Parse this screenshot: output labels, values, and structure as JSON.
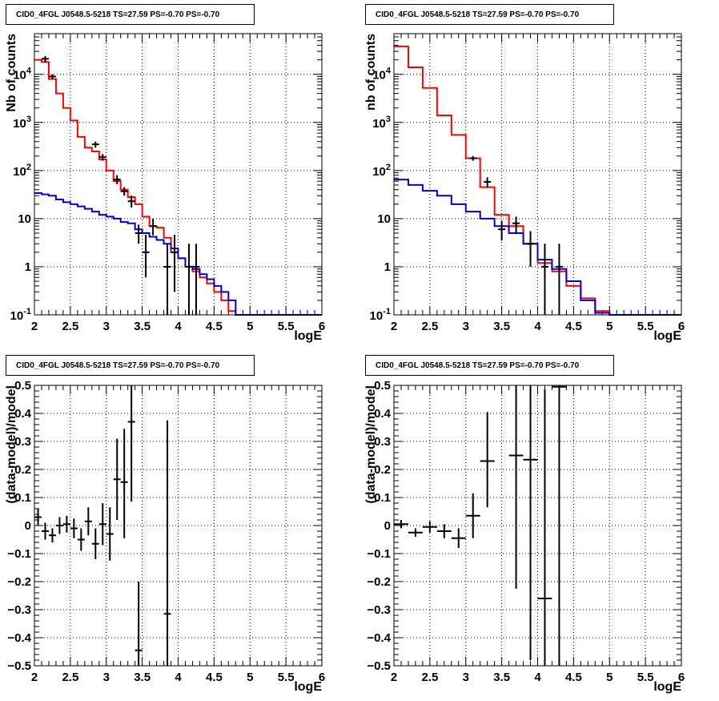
{
  "colors": {
    "data": "#000000",
    "model_total": "#ff0000",
    "model_bkg": "#0000cc",
    "grid": "#000000"
  },
  "chart_data": [
    {
      "type": "line",
      "title": "CID0_4FGL J0548.5-5218 TS=27.59 PS=-0.70 PS=-0.70",
      "xlabel": "logE",
      "ylabel": "Nb of counts",
      "xlim": [
        2,
        6
      ],
      "ylim": [
        0.1,
        70000
      ],
      "yscale": "log",
      "grid": true,
      "x_ticks": [
        "2",
        "2.5",
        "3",
        "3.5",
        "4",
        "4.5",
        "5",
        "5.5",
        "6"
      ],
      "y_ticks": [
        {
          "v": 0.1,
          "base": "10",
          "exp": "-1"
        },
        {
          "v": 1,
          "text": "1"
        },
        {
          "v": 10,
          "text": "10"
        },
        {
          "v": 100,
          "base": "10",
          "exp": "2"
        },
        {
          "v": 1000,
          "base": "10",
          "exp": "3"
        },
        {
          "v": 10000,
          "base": "10",
          "exp": "4"
        }
      ],
      "bin_edges": [
        2.0,
        2.1,
        2.2,
        2.3,
        2.4,
        2.5,
        2.6,
        2.7,
        2.8,
        2.9,
        3.0,
        3.1,
        3.2,
        3.3,
        3.4,
        3.5,
        3.6,
        3.7,
        3.8,
        3.9,
        4.0,
        4.1,
        4.2,
        4.3,
        4.4,
        4.5,
        4.6,
        4.7,
        4.8,
        4.9,
        5.0,
        5.1,
        5.2,
        5.3,
        5.4,
        5.5,
        5.6,
        5.7,
        5.8,
        5.9,
        6.0
      ],
      "series": [
        {
          "role": "total",
          "values": [
            20000,
            18000,
            8000,
            4000,
            2000,
            1100,
            500,
            300,
            250,
            170,
            100,
            60,
            40,
            28,
            20,
            11,
            7,
            6.5,
            4,
            2,
            1.5,
            1,
            0.8,
            0.6,
            0.45,
            0.3,
            0.2,
            0.12,
            0.1,
            0.1,
            0.1,
            0.1,
            0.1,
            0.1,
            0.1,
            0.1,
            0.1,
            0.1,
            0.1,
            0.1
          ]
        },
        {
          "role": "background",
          "values": [
            34,
            32,
            30,
            25,
            22,
            20,
            18,
            16,
            14,
            12,
            11,
            10,
            8.5,
            8,
            6,
            5,
            4.2,
            3.6,
            3,
            2.4,
            1.5,
            1,
            0.9,
            0.7,
            0.55,
            0.4,
            0.3,
            0.2,
            0.1,
            0.1,
            0.1,
            0.1,
            0.1,
            0.1,
            0.1,
            0.1,
            0.1,
            0.1,
            0.1,
            0.1
          ]
        }
      ],
      "points": [
        {
          "x": 2.15,
          "y": 21000,
          "lo": 18000,
          "hi": 24000
        },
        {
          "x": 2.25,
          "y": 9000,
          "lo": 8000,
          "hi": 10000
        },
        {
          "x": 2.85,
          "y": 350,
          "lo": 300,
          "hi": 400
        },
        {
          "x": 2.95,
          "y": 190,
          "lo": 160,
          "hi": 220
        },
        {
          "x": 3.15,
          "y": 65,
          "lo": 52,
          "hi": 80
        },
        {
          "x": 3.25,
          "y": 37,
          "lo": 30,
          "hi": 45
        },
        {
          "x": 3.35,
          "y": 23,
          "lo": 17,
          "hi": 30
        },
        {
          "x": 3.45,
          "y": 5,
          "lo": 3,
          "hi": 7.5
        },
        {
          "x": 3.55,
          "y": 2,
          "lo": 0.6,
          "hi": 4.6
        },
        {
          "x": 3.65,
          "y": 7,
          "lo": 4.5,
          "hi": 10
        },
        {
          "x": 3.85,
          "y": 1,
          "lo": 0.1,
          "hi": 3
        },
        {
          "x": 3.95,
          "y": 2,
          "lo": 0.3,
          "hi": 4.6
        },
        {
          "x": 4.15,
          "y": 1,
          "lo": 0.1,
          "hi": 3
        },
        {
          "x": 4.25,
          "y": 1,
          "lo": 0.1,
          "hi": 3
        }
      ]
    },
    {
      "type": "line",
      "title": "CID0_4FGL J0548.5-5218 TS=27.59 PS=-0.70 PS=-0.70",
      "xlabel": "logE",
      "ylabel": "nb of counts",
      "xlim": [
        2,
        6
      ],
      "ylim": [
        0.1,
        70000
      ],
      "yscale": "log",
      "grid": true,
      "x_ticks": [
        "2",
        "2.5",
        "3",
        "3.5",
        "4",
        "4.5",
        "5",
        "5.5",
        "6"
      ],
      "y_ticks": [
        {
          "v": 0.1,
          "base": "10",
          "exp": "-1"
        },
        {
          "v": 1,
          "text": "1"
        },
        {
          "v": 10,
          "text": "10"
        },
        {
          "v": 100,
          "base": "10",
          "exp": "2"
        },
        {
          "v": 1000,
          "base": "10",
          "exp": "3"
        },
        {
          "v": 10000,
          "base": "10",
          "exp": "4"
        }
      ],
      "bin_edges": [
        2.0,
        2.2,
        2.4,
        2.6,
        2.8,
        3.0,
        3.2,
        3.4,
        3.6,
        3.8,
        4.0,
        4.2,
        4.4,
        4.6,
        4.8,
        5.0,
        5.2,
        5.4,
        5.6,
        5.8,
        6.0
      ],
      "series": [
        {
          "role": "total",
          "values": [
            38000,
            14000,
            5200,
            1400,
            550,
            180,
            45,
            12,
            7,
            3,
            1.2,
            0.8,
            0.4,
            0.22,
            0.12,
            0.1,
            0.1,
            0.1,
            0.1,
            0.1
          ]
        },
        {
          "role": "background",
          "values": [
            65,
            50,
            38,
            30,
            20,
            14,
            10,
            7,
            5,
            3,
            1.4,
            0.9,
            0.5,
            0.2,
            0.11,
            0.1,
            0.1,
            0.1,
            0.1,
            0.1
          ]
        }
      ],
      "points": [
        {
          "x": 3.1,
          "y": 180,
          "lo": 160,
          "hi": 200
        },
        {
          "x": 3.3,
          "y": 58,
          "lo": 45,
          "hi": 72
        },
        {
          "x": 3.5,
          "y": 6,
          "lo": 3.5,
          "hi": 9
        },
        {
          "x": 3.7,
          "y": 8,
          "lo": 5,
          "hi": 11
        },
        {
          "x": 3.9,
          "y": 3,
          "lo": 1,
          "hi": 5.5
        },
        {
          "x": 4.1,
          "y": 1,
          "lo": 0.1,
          "hi": 3
        },
        {
          "x": 4.3,
          "y": 1,
          "lo": 0.1,
          "hi": 3
        }
      ]
    },
    {
      "type": "scatter",
      "title": "CID0_4FGL J0548.5-5218 TS=27.59 PS=-0.70 PS=-0.70",
      "xlabel": "logE",
      "ylabel": "(data-model)/model",
      "xlim": [
        2,
        6
      ],
      "ylim": [
        -0.5,
        0.5
      ],
      "yscale": "linear",
      "grid": true,
      "x_ticks": [
        "2",
        "2.5",
        "3",
        "3.5",
        "4",
        "4.5",
        "5",
        "5.5",
        "6"
      ],
      "y_ticks": [
        {
          "v": -0.5,
          "text": "−0.5"
        },
        {
          "v": -0.4,
          "text": "−0.4"
        },
        {
          "v": -0.3,
          "text": "−0.3"
        },
        {
          "v": -0.2,
          "text": "−0.2"
        },
        {
          "v": -0.1,
          "text": "−0.1"
        },
        {
          "v": 0,
          "text": "0"
        },
        {
          "v": 0.1,
          "text": "0.1"
        },
        {
          "v": 0.2,
          "text": "0.2"
        },
        {
          "v": 0.3,
          "text": "0.3"
        },
        {
          "v": 0.4,
          "text": "0.4"
        },
        {
          "v": 0.5,
          "text": "0.5"
        }
      ],
      "points": [
        {
          "x": 2.05,
          "y": 0.03,
          "lo": 0.0,
          "hi": 0.06,
          "hw": 0.05
        },
        {
          "x": 2.15,
          "y": -0.02,
          "lo": -0.05,
          "hi": 0.01,
          "hw": 0.05
        },
        {
          "x": 2.25,
          "y": -0.035,
          "lo": -0.06,
          "hi": -0.01,
          "hw": 0.05
        },
        {
          "x": 2.35,
          "y": 0.0,
          "lo": -0.03,
          "hi": 0.03,
          "hw": 0.05
        },
        {
          "x": 2.45,
          "y": 0.005,
          "lo": -0.025,
          "hi": 0.035,
          "hw": 0.05
        },
        {
          "x": 2.55,
          "y": -0.01,
          "lo": -0.045,
          "hi": 0.025,
          "hw": 0.05
        },
        {
          "x": 2.65,
          "y": -0.05,
          "lo": -0.09,
          "hi": -0.01,
          "hw": 0.05
        },
        {
          "x": 2.75,
          "y": 0.015,
          "lo": -0.035,
          "hi": 0.065,
          "hw": 0.05
        },
        {
          "x": 2.85,
          "y": -0.065,
          "lo": -0.12,
          "hi": -0.01,
          "hw": 0.05
        },
        {
          "x": 2.95,
          "y": 0.005,
          "lo": -0.07,
          "hi": 0.08,
          "hw": 0.05
        },
        {
          "x": 3.05,
          "y": -0.03,
          "lo": -0.125,
          "hi": 0.065,
          "hw": 0.05
        },
        {
          "x": 3.15,
          "y": 0.165,
          "lo": 0.02,
          "hi": 0.31,
          "hw": 0.05
        },
        {
          "x": 3.25,
          "y": 0.155,
          "lo": -0.045,
          "hi": 0.345,
          "hw": 0.05
        },
        {
          "x": 3.35,
          "y": 0.37,
          "lo": 0.085,
          "hi": 0.5,
          "hw": 0.05
        },
        {
          "x": 3.45,
          "y": -0.445,
          "lo": -0.5,
          "hi": -0.2,
          "hw": 0.05
        },
        {
          "x": 3.85,
          "y": -0.315,
          "lo": -0.5,
          "hi": 0.375,
          "hw": 0.05
        }
      ]
    },
    {
      "type": "scatter",
      "title": "CID0_4FGL J0548.5-5218 TS=27.59 PS=-0.70 PS=-0.70",
      "xlabel": "logE",
      "ylabel": "(data-model)/model",
      "xlim": [
        2,
        6
      ],
      "ylim": [
        -0.5,
        0.5
      ],
      "yscale": "linear",
      "grid": true,
      "x_ticks": [
        "2",
        "2.5",
        "3",
        "3.5",
        "4",
        "4.5",
        "5",
        "5.5",
        "6"
      ],
      "y_ticks": [
        {
          "v": -0.5,
          "text": "−0.5"
        },
        {
          "v": -0.4,
          "text": "−0.4"
        },
        {
          "v": -0.3,
          "text": "−0.3"
        },
        {
          "v": -0.2,
          "text": "−0.2"
        },
        {
          "v": -0.1,
          "text": "−0.1"
        },
        {
          "v": 0,
          "text": "0"
        },
        {
          "v": 0.1,
          "text": "0.1"
        },
        {
          "v": 0.2,
          "text": "0.2"
        },
        {
          "v": 0.3,
          "text": "0.3"
        },
        {
          "v": 0.4,
          "text": "0.4"
        },
        {
          "v": 0.5,
          "text": "0.5"
        }
      ],
      "points": [
        {
          "x": 2.1,
          "y": 0.005,
          "lo": -0.01,
          "hi": 0.02,
          "hw": 0.1
        },
        {
          "x": 2.3,
          "y": -0.025,
          "lo": -0.04,
          "hi": -0.01,
          "hw": 0.1
        },
        {
          "x": 2.5,
          "y": -0.005,
          "lo": -0.025,
          "hi": 0.015,
          "hw": 0.1
        },
        {
          "x": 2.7,
          "y": -0.02,
          "lo": -0.045,
          "hi": 0.005,
          "hw": 0.1
        },
        {
          "x": 2.9,
          "y": -0.045,
          "lo": -0.08,
          "hi": -0.01,
          "hw": 0.1
        },
        {
          "x": 3.1,
          "y": 0.035,
          "lo": -0.045,
          "hi": 0.115,
          "hw": 0.1
        },
        {
          "x": 3.3,
          "y": 0.23,
          "lo": 0.065,
          "hi": 0.405,
          "hw": 0.1
        },
        {
          "x": 3.7,
          "y": 0.25,
          "lo": -0.225,
          "hi": 0.5,
          "hw": 0.1
        },
        {
          "x": 3.9,
          "y": 0.235,
          "lo": -0.48,
          "hi": 0.5,
          "hw": 0.1
        },
        {
          "x": 4.1,
          "y": -0.26,
          "lo": -0.5,
          "hi": 0.485,
          "hw": 0.1
        },
        {
          "x": 4.3,
          "y": 0.495,
          "lo": -0.5,
          "hi": 0.5,
          "hw": 0.1
        }
      ]
    }
  ]
}
